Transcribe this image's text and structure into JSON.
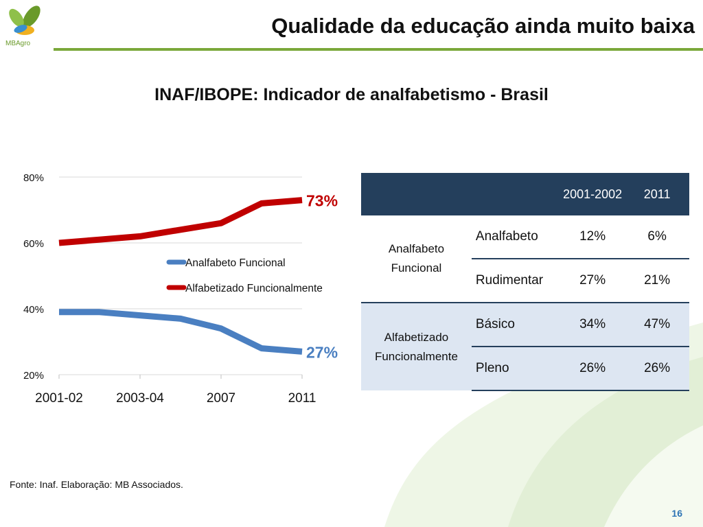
{
  "brand": {
    "logo_text": "MBAgro"
  },
  "header": {
    "title": "Qualidade da educação ainda muito baixa"
  },
  "chart_data": {
    "type": "line",
    "title": "INAF/IBOPE: Indicador de analfabetismo - Brasil",
    "x_tick_labels": [
      "2001-02",
      "2003-04",
      "2007",
      "2011"
    ],
    "x_points": 7,
    "y_ticks": [
      "20%",
      "40%",
      "60%",
      "80%"
    ],
    "ylim": [
      20,
      80
    ],
    "grid": true,
    "legend_position": "middle",
    "series": [
      {
        "name": "Analfabeto Funcional",
        "color": "#4a7fc1",
        "values": [
          39,
          39,
          38,
          37,
          34,
          28,
          27
        ],
        "end_label": "27%"
      },
      {
        "name": "Alfabetizado Funcionalmente",
        "color": "#c00000",
        "values": [
          60,
          61,
          62,
          64,
          66,
          72,
          73
        ],
        "end_label": "73%"
      }
    ]
  },
  "table": {
    "headers": [
      "2001-2002",
      "2011"
    ],
    "groups": [
      {
        "label": "Analfabeto Funcional",
        "rows": [
          {
            "level": "Analfabeto",
            "v1": "12%",
            "v2": "6%"
          },
          {
            "level": "Rudimentar",
            "v1": "27%",
            "v2": "21%"
          }
        ]
      },
      {
        "label": "Alfabetizado Funcionalmente",
        "rows": [
          {
            "level": "Básico",
            "v1": "34%",
            "v2": "47%"
          },
          {
            "level": "Pleno",
            "v1": "26%",
            "v2": "26%"
          }
        ]
      }
    ]
  },
  "footer": {
    "source": "Fonte: Inaf. Elaboração: MB Associados.",
    "page_number": "16"
  }
}
